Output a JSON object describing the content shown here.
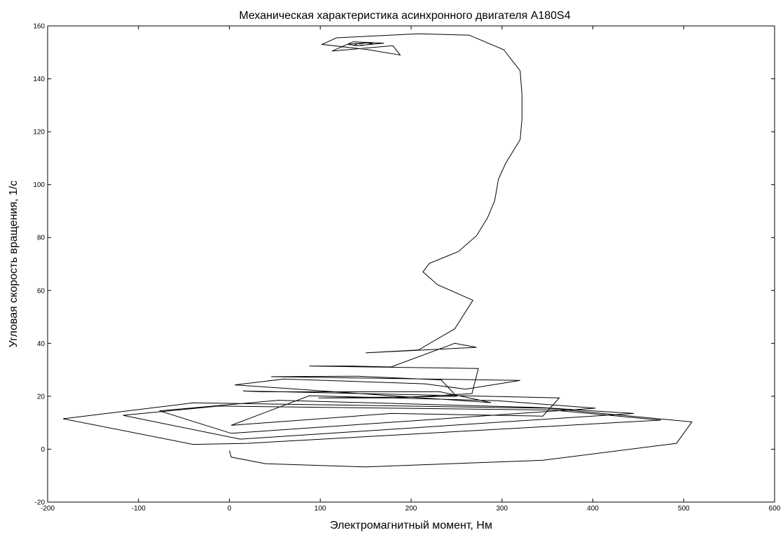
{
  "chart_data": {
    "type": "line",
    "title": "Механическая характеристика асинхронного двигателя А180S4",
    "xlabel": "Электромагнитный момент, Нм",
    "ylabel": "Угловая скорость вращения, 1/с",
    "xlim": [
      -200,
      600
    ],
    "ylim": [
      -20,
      160
    ],
    "xticks": [
      -200,
      -100,
      0,
      100,
      200,
      300,
      400,
      500,
      600
    ],
    "yticks": [
      -20,
      0,
      20,
      40,
      60,
      80,
      100,
      120,
      140,
      160
    ],
    "grid": false,
    "line_color": "#000000",
    "series": [
      {
        "x": [
          0,
          2,
          40,
          150,
          345,
          492,
          509,
          350,
          -40,
          -183,
          -40,
          20,
          475,
          355,
          -12,
          -117,
          12,
          445,
          345,
          54,
          -77,
          2,
          403,
          295,
          88,
          2,
          178,
          345,
          363,
          15,
          36,
          232,
          265,
          288,
          6,
          60,
          215,
          260,
          320,
          46,
          141,
          233,
          250,
          98,
          183,
          267,
          274,
          88,
          138,
          178,
          248,
          272,
          150,
          208,
          248,
          268,
          229,
          213,
          220,
          252,
          272,
          284,
          292,
          296,
          304,
          320,
          322,
          322,
          320,
          302,
          264,
          208,
          118,
          102,
          153,
          188,
          180,
          113,
          136,
          170,
          140,
          130,
          152,
          158,
          146,
          137,
          141,
          148,
          143,
          144,
          143
        ],
        "y": [
          -0.5,
          -3,
          -5.5,
          -6.7,
          -4.2,
          2.2,
          10.3,
          15.5,
          17.5,
          11.5,
          1.8,
          2.2,
          11,
          14.8,
          16.3,
          12.8,
          3.8,
          13.5,
          15.7,
          18.5,
          14.5,
          6,
          15.5,
          18.3,
          20.2,
          9,
          13.5,
          12.5,
          19.4,
          22,
          21.7,
          21.7,
          19.3,
          17.6,
          24.3,
          26.5,
          24.7,
          22.7,
          26,
          27.4,
          27.6,
          26.2,
          20,
          19.4,
          19.4,
          21,
          30.5,
          31.4,
          31.4,
          31.1,
          40,
          38.5,
          36.4,
          37.5,
          45.5,
          56.3,
          62.2,
          67,
          70.2,
          74.7,
          80.7,
          87.4,
          94,
          102,
          108,
          117,
          125,
          134,
          143,
          151,
          156.5,
          157,
          155.5,
          153,
          151,
          149,
          152.5,
          150.5,
          154,
          153.5,
          152.5,
          153.1,
          153.6,
          153.3,
          152.6,
          152.6,
          153.3,
          153.4,
          153.2,
          153.2,
          153.2
        ]
      }
    ]
  }
}
